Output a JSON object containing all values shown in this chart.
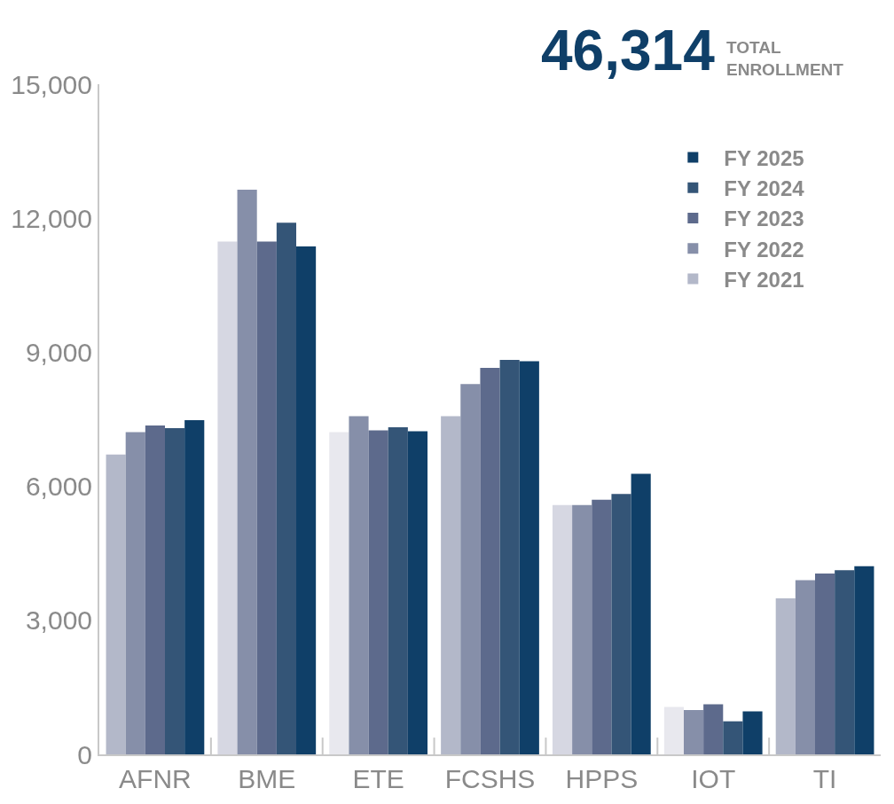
{
  "chart_data": {
    "type": "bar",
    "title": "46,314",
    "subtitle": "TOTAL ENROLLMENT",
    "categories": [
      "AFNR",
      "BME",
      "ETE",
      "FCSHS",
      "HPPS",
      "IOT",
      "TI"
    ],
    "series": [
      {
        "name": "FY 2021",
        "color": "#b3b8c9",
        "colors": [
          "#b3b8c9",
          "#d6d7e2",
          "#e8e8ee",
          "#b3b8c9",
          "#d6d7e2",
          "#e8e8ee",
          "#b3b8c9"
        ],
        "values": [
          6710,
          11480,
          7210,
          7570,
          5580,
          1060,
          3490
        ]
      },
      {
        "name": "FY 2022",
        "color": "#868fa9",
        "values": [
          7210,
          12640,
          7570,
          8290,
          5580,
          990,
          3900
        ]
      },
      {
        "name": "FY 2023",
        "color": "#5d6a8c",
        "values": [
          7360,
          11480,
          7250,
          8650,
          5700,
          1120,
          4050
        ]
      },
      {
        "name": "FY 2024",
        "color": "#345577",
        "values": [
          7300,
          11900,
          7320,
          8830,
          5830,
          740,
          4120
        ]
      },
      {
        "name": "FY 2025",
        "color": "#0f3f68",
        "values": [
          7480,
          11370,
          7230,
          8800,
          6280,
          960,
          4210
        ]
      }
    ],
    "ylim": [
      0,
      15000
    ],
    "yticks": [
      {
        "value": 0,
        "label": "0"
      },
      {
        "value": 3000,
        "label": "3,000"
      },
      {
        "value": 6000,
        "label": "6,000"
      },
      {
        "value": 9000,
        "label": "9,000"
      },
      {
        "value": 12000,
        "label": "12,000"
      },
      {
        "value": 15000,
        "label": "15,000"
      }
    ],
    "grid": false,
    "legend": "top right"
  }
}
